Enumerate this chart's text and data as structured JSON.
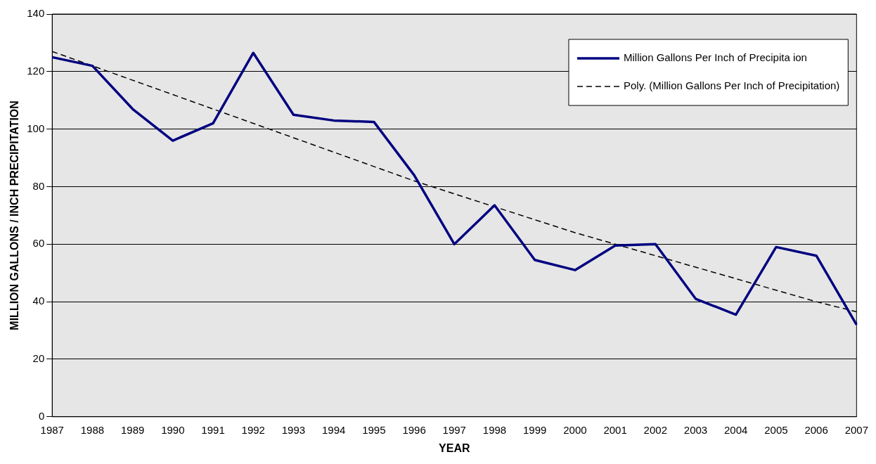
{
  "chart_data": {
    "type": "line",
    "xlabel": "YEAR",
    "ylabel": "MILLION GALLONS / INCH PRECIPITATION",
    "categories": [
      "1987",
      "1988",
      "1989",
      "1990",
      "1991",
      "1992",
      "1993",
      "1994",
      "1995",
      "1996",
      "1997",
      "1998",
      "1999",
      "2000",
      "2001",
      "2002",
      "2003",
      "2004",
      "2005",
      "2006",
      "2007"
    ],
    "series": [
      {
        "name": "Million Gallons Per Inch of Precipita ion",
        "color": "#000080",
        "line_style": "solid",
        "values": [
          125,
          122,
          107,
          96,
          102,
          126.5,
          105,
          103,
          102.5,
          84,
          60,
          73.5,
          54.5,
          51,
          59.5,
          60,
          41,
          35.5,
          59,
          56,
          32
        ]
      },
      {
        "name": "Poly. (Million Gallons Per Inch of Precipitation)",
        "color": "#000000",
        "line_style": "dashed",
        "values": [
          127,
          122,
          117,
          112,
          107,
          102,
          97,
          92,
          87,
          82,
          77.5,
          73,
          68.5,
          64,
          60,
          56,
          52,
          48,
          44,
          40,
          36.5
        ]
      }
    ],
    "ylim": [
      0,
      140
    ],
    "yticks": [
      0,
      20,
      40,
      60,
      80,
      100,
      120,
      140
    ],
    "grid": "y",
    "legend": "top right",
    "marker": "none"
  }
}
